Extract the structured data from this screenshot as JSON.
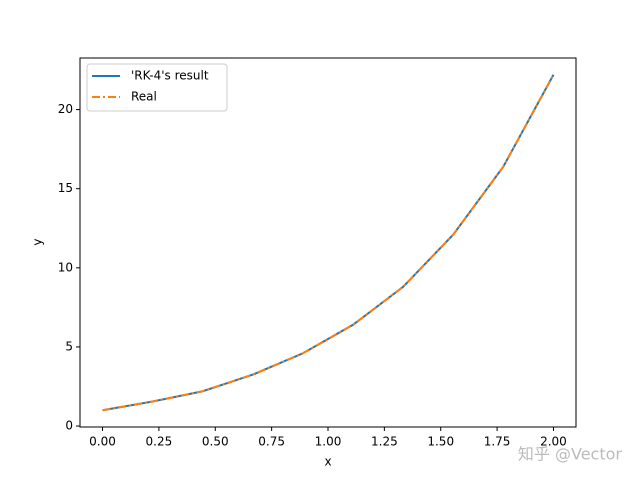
{
  "chart_data": {
    "type": "line",
    "x": [
      0.0,
      0.2222,
      0.4444,
      0.6667,
      0.8889,
      1.1111,
      1.3333,
      1.5556,
      1.7778,
      2.0
    ],
    "series": [
      {
        "name": "'RK-4's result",
        "color": "#1f77b4",
        "values": [
          1.0,
          1.55,
          2.2,
          3.25,
          4.6,
          6.4,
          8.8,
          12.1,
          16.4,
          22.2
        ]
      },
      {
        "name": "Real",
        "color": "#ff7f0e",
        "values": [
          1.0,
          1.55,
          2.2,
          3.25,
          4.6,
          6.4,
          8.8,
          12.1,
          16.4,
          22.2
        ]
      }
    ],
    "x_label": "x",
    "y_label": "y",
    "xlim": [
      -0.1,
      2.1
    ],
    "xticks": [
      {
        "value": 0,
        "label": "0.00"
      },
      {
        "value": 0.25,
        "label": "0.25"
      },
      {
        "value": 0.5,
        "label": "0.50"
      },
      {
        "value": 0.75,
        "label": "0.75"
      },
      {
        "value": 1,
        "label": "1.00"
      },
      {
        "value": 1.25,
        "label": "1.25"
      },
      {
        "value": 1.5,
        "label": "1.50"
      },
      {
        "value": 1.75,
        "label": "1.75"
      },
      {
        "value": 2,
        "label": "2.00"
      }
    ],
    "ylim": [
      -0.06,
      23.26
    ],
    "yticks": [
      0,
      5,
      10,
      15,
      20
    ],
    "legend": "upper left",
    "watermark": "知乎 @Vector"
  }
}
